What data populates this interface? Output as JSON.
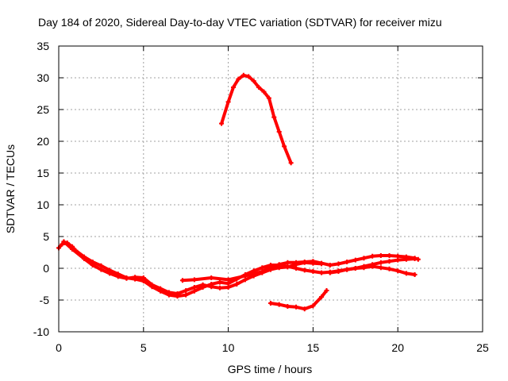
{
  "chart_data": {
    "type": "scatter",
    "title": "Day 184 of 2020, Sidereal Day-to-day VTEC variation (SDTVAR) for receiver mizu",
    "xlabel": "GPS time / hours",
    "ylabel": "SDTVAR / TECUs",
    "xlim": [
      0,
      25
    ],
    "ylim": [
      -10,
      35
    ],
    "xticks": [
      0,
      5,
      10,
      15,
      20,
      25
    ],
    "yticks": [
      -10,
      -5,
      0,
      5,
      10,
      15,
      20,
      25,
      30,
      35
    ],
    "x_tick_labels": [
      "0",
      "5",
      "10",
      "15",
      "20",
      "25"
    ],
    "y_tick_labels": [
      "-10",
      "-5",
      "0",
      "5",
      "10",
      "15",
      "20",
      "25",
      "30",
      "35"
    ],
    "grid": true,
    "color": "#ff0000",
    "series": [
      {
        "name": "track-a",
        "x": [
          0.0,
          0.2,
          0.5,
          0.8,
          1.0,
          1.5,
          2.0,
          2.5,
          3.0,
          3.5,
          4.0,
          4.5,
          5.0,
          5.5,
          6.0,
          6.5,
          7.0,
          7.5,
          8.0,
          8.5,
          9.0,
          9.5,
          10.0,
          10.5,
          11.0,
          11.5,
          12.0,
          12.5,
          13.0,
          13.5,
          14.0,
          14.5,
          15.0,
          15.5,
          16.0,
          16.5,
          17.0,
          17.5,
          18.0,
          18.5,
          19.0,
          19.5,
          20.0,
          20.5,
          21.0
        ],
        "y": [
          3.2,
          3.8,
          4.0,
          3.4,
          2.8,
          1.8,
          1.0,
          0.4,
          -0.3,
          -0.9,
          -1.5,
          -1.7,
          -2.0,
          -2.9,
          -3.6,
          -4.2,
          -4.4,
          -4.2,
          -3.6,
          -3.0,
          -2.5,
          -2.2,
          -2.4,
          -1.7,
          -1.0,
          -0.4,
          0.1,
          0.5,
          0.5,
          0.3,
          0.0,
          -0.3,
          -0.5,
          -0.7,
          -0.6,
          -0.4,
          -0.2,
          0.0,
          0.3,
          0.6,
          0.9,
          1.1,
          1.3,
          1.4,
          1.5
        ]
      },
      {
        "name": "track-b",
        "x": [
          0.3,
          0.8,
          1.5,
          2.0,
          2.5,
          3.0,
          3.5,
          4.0,
          4.5,
          5.0,
          5.5,
          6.0,
          6.5,
          7.0,
          7.5,
          8.0,
          8.5,
          9.0,
          9.5,
          10.0,
          10.5,
          11.0,
          11.5,
          12.0,
          12.5,
          13.0,
          13.5,
          14.0,
          14.5,
          15.0,
          15.5
        ],
        "y": [
          4.2,
          3.0,
          1.5,
          0.5,
          -0.2,
          -0.8,
          -1.3,
          -1.6,
          -1.4,
          -1.5,
          -2.6,
          -3.2,
          -3.8,
          -4.0,
          -3.5,
          -3.0,
          -2.6,
          -2.9,
          -3.1,
          -3.0,
          -2.5,
          -1.8,
          -1.2,
          -0.7,
          -0.2,
          0.1,
          0.2,
          0.6,
          0.9,
          0.8,
          0.7
        ]
      },
      {
        "name": "track-c",
        "x": [
          7.3,
          8.0,
          9.0,
          10.0,
          11.0,
          12.0,
          12.5,
          13.0,
          13.5,
          14.0,
          14.5,
          15.0,
          15.5,
          16.0,
          16.5,
          17.0,
          17.5,
          18.0,
          18.5,
          19.0,
          19.5,
          20.0,
          20.5,
          21.0,
          21.2
        ],
        "y": [
          -1.9,
          -1.8,
          -1.5,
          -1.8,
          -1.2,
          -0.5,
          0.2,
          0.6,
          0.9,
          0.9,
          1.0,
          1.1,
          0.8,
          0.5,
          0.7,
          1.0,
          1.3,
          1.6,
          1.9,
          2.0,
          2.0,
          1.9,
          1.8,
          1.6,
          1.4
        ]
      },
      {
        "name": "track-d",
        "x": [
          16.0,
          16.5,
          17.0,
          17.5,
          18.0,
          18.5,
          19.0,
          19.5,
          20.0,
          20.5,
          21.0
        ],
        "y": [
          -0.7,
          -0.5,
          -0.2,
          0.0,
          0.1,
          0.3,
          0.1,
          -0.1,
          -0.4,
          -0.8,
          -1.0
        ]
      },
      {
        "name": "track-e",
        "x": [
          12.5,
          13.0,
          13.5,
          14.0,
          14.5,
          15.0,
          15.5,
          15.8
        ],
        "y": [
          -5.5,
          -5.7,
          -6.0,
          -6.1,
          -6.4,
          -5.9,
          -4.5,
          -3.5
        ]
      },
      {
        "name": "track-f",
        "x": [
          9.6,
          10.0,
          10.3,
          10.6,
          10.9,
          11.2,
          11.5,
          11.8,
          12.1,
          12.4,
          12.7,
          13.0,
          13.3,
          13.7
        ],
        "y": [
          22.8,
          26.2,
          28.5,
          29.8,
          30.4,
          30.2,
          29.5,
          28.5,
          27.8,
          26.8,
          23.8,
          21.5,
          19.2,
          16.6
        ]
      }
    ]
  }
}
